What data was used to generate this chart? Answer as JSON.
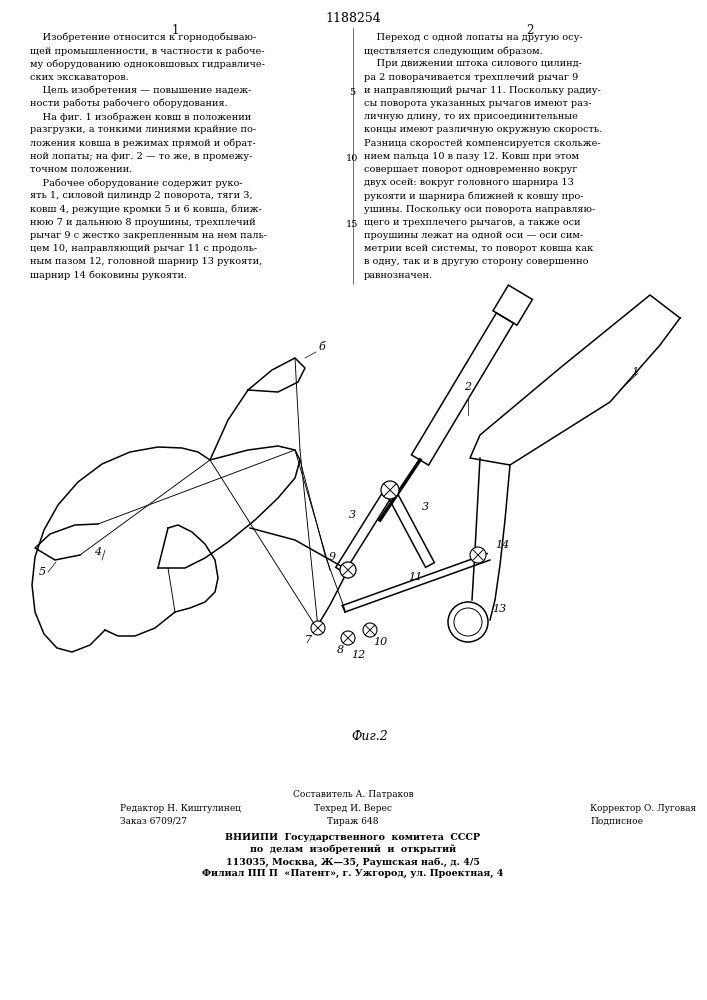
{
  "patent_number": "1188254",
  "col1_header": "1",
  "col2_header": "2",
  "col1_lines_number": [
    5,
    10,
    15
  ],
  "col1_text": [
    "    Изобретение относится к горнодобываю-",
    "щей промышленности, в частности к рабоче-",
    "му оборудованию одноковшовых гидравличе-",
    "ских экскаваторов.",
    "    Цель изобретения — повышение надеж-",
    "ности работы рабочего оборудования.",
    "    На фиг. 1 изображен ковш в положении",
    "разгрузки, а тонкими линиями крайние по-",
    "ложения ковша в режимах прямой и обрат-",
    "ной лопаты; на фиг. 2 — то же, в промежу-",
    "точном положении.",
    "    Рабочее оборудование содержит руко-",
    "ять 1, силовой цилиндр 2 поворота, тяги 3,",
    "ковш 4, режущие кромки 5 и 6 ковша, ближ-",
    "нюю 7 и дальнюю 8 проушины, трехплечий",
    "рычаг 9 с жестко закрепленным на нем паль-",
    "цем 10, направляющий рычаг 11 с продоль-",
    "ным пазом 12, головной шарнир 13 рукояти,",
    "шарнир 14 боковины рукояти."
  ],
  "col2_text": [
    "    Переход с одной лопаты на другую осу-",
    "ществляется следующим образом.",
    "    При движении штока силового цилинд-",
    "ра 2 поворачивается трехплечий рычаг 9",
    "и направляющий рычаг 11. Поскольку радиу-",
    "сы поворота указанных рычагов имеют раз-",
    "личную длину, то их присоединительные",
    "концы имеют различную окружную скорость.",
    "Разница скоростей компенсируется скольже-",
    "нием пальца 10 в пазу 12. Ковш при этом",
    "совершает поворот одновременно вокруг",
    "двух осей: вокруг головного шарнира 13",
    "рукояти и шарнира ближней к ковшу про-",
    "ушины. Поскольку оси поворота направляю-",
    "щего и трехплечего рычагов, а также оси",
    "проушины лежат на одной оси — оси сим-",
    "метрии всей системы, то поворот ковша как",
    "в одну, так и в другую сторону совершенно",
    "равнозначен."
  ],
  "line_numbers_col1": [
    "5",
    "10",
    "15"
  ],
  "line_numbers_col2": [
    "5",
    "10",
    "15"
  ],
  "fig2_label": "Фиг.2",
  "bottom_line1": "Составитель А. Патраков",
  "bottom_line2_left": "Редактор Н. Киштулинец",
  "bottom_line2_mid": "Техред И. Верес",
  "bottom_line2_right": "Корректор О. Луговая",
  "bottom_line3_left": "Заказ 6709/27",
  "bottom_line3_mid": "Тираж 648",
  "bottom_line3_right": "Подписное",
  "bottom_bold1": "ВНИИПИ  Государственного  комитета  СССР",
  "bottom_bold2": "по  делам  изобретений  и  открытий",
  "bottom_bold3": "113035, Москва, Ж—35, Раушская наб., д. 4/5",
  "bottom_bold4": "Филиал ПП П  «Патент», г. Ужгород, ул. Проектная, 4",
  "bg_color": "#ffffff",
  "text_color": "#000000"
}
